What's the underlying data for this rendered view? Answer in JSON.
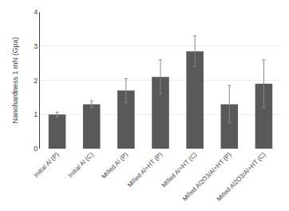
{
  "chart_data": {
    "type": "bar",
    "categories": [
      "Initial Al (P)",
      "Initial Al (C)",
      "Milled Al (P)",
      "Milled Al+HT (P)",
      "Milled Al+HT (C)",
      "Milled Al2O3/Al+HT (P)",
      "Milled Al2O3/Al+HT (C)"
    ],
    "values": [
      1.0,
      1.3,
      1.7,
      2.1,
      2.85,
      1.3,
      1.9
    ],
    "errors": [
      0.07,
      0.1,
      0.35,
      0.5,
      0.45,
      0.55,
      0.7
    ],
    "color": "#595959",
    "ylabel": "Nanohardness 1 mN (Gpa)",
    "ylim": [
      0,
      4
    ],
    "yticks": [
      0,
      1,
      2,
      3,
      4
    ],
    "grid": true
  }
}
